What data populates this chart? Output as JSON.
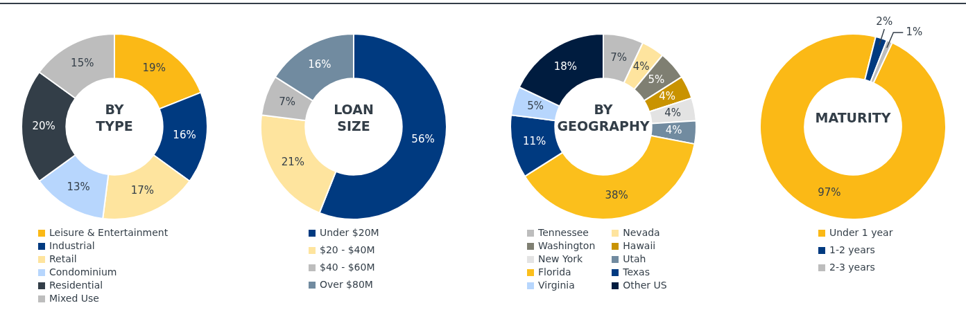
{
  "chart_data": [
    {
      "type": "donut",
      "title": "BY TYPE",
      "categories": [
        "Leisure & Entertainment",
        "Industrial",
        "Retail",
        "Condominium",
        "Residential",
        "Mixed Use"
      ],
      "values": [
        19,
        16,
        17,
        13,
        20,
        15
      ],
      "colors": [
        "#fbb916",
        "#003a80",
        "#fee49e",
        "#b7d6fd",
        "#333e48",
        "#bdbdbd"
      ],
      "value_labels": [
        "19%",
        "16%",
        "17%",
        "13%",
        "20%",
        "15%"
      ],
      "legend": "bottom"
    },
    {
      "type": "donut",
      "title": "LOAN SIZE",
      "categories": [
        "Under $20M",
        "$20 - $40M",
        "$40 - $60M",
        "Over $80M"
      ],
      "values": [
        56,
        21,
        7,
        16
      ],
      "colors": [
        "#003a80",
        "#fee49e",
        "#bdbdbd",
        "#718ba0"
      ],
      "value_labels": [
        "56%",
        "21%",
        "7%",
        "16%"
      ],
      "legend": "bottom"
    },
    {
      "type": "donut",
      "title": "BY GEOGRAPHY",
      "categories": [
        "Tennessee",
        "Nevada",
        "Washington",
        "Hawaii",
        "New York",
        "Utah",
        "Florida",
        "Texas",
        "Virginia",
        "Other US"
      ],
      "values": [
        7,
        4,
        5,
        4,
        4,
        4,
        38,
        11,
        5,
        18
      ],
      "colors": [
        "#bdbdbd",
        "#fee49e",
        "#7f7f72",
        "#c99300",
        "#e3e3e3",
        "#718ba0",
        "#fbbf1c",
        "#003a80",
        "#b7d6fd",
        "#001c3f"
      ],
      "value_labels": [
        "7%",
        "4%",
        "5%",
        "4%",
        "4%",
        "4%",
        "38%",
        "11%",
        "5%",
        "18%"
      ],
      "legend": "bottom"
    },
    {
      "type": "donut",
      "title": "MATURITY",
      "categories": [
        "Under 1 year",
        "1-2 years",
        "2-3 years"
      ],
      "values": [
        97,
        2,
        1
      ],
      "colors": [
        "#fbb916",
        "#003a80",
        "#bdbdbd"
      ],
      "value_labels": [
        "97%",
        "2%",
        "1%"
      ],
      "legend": "bottom"
    }
  ]
}
